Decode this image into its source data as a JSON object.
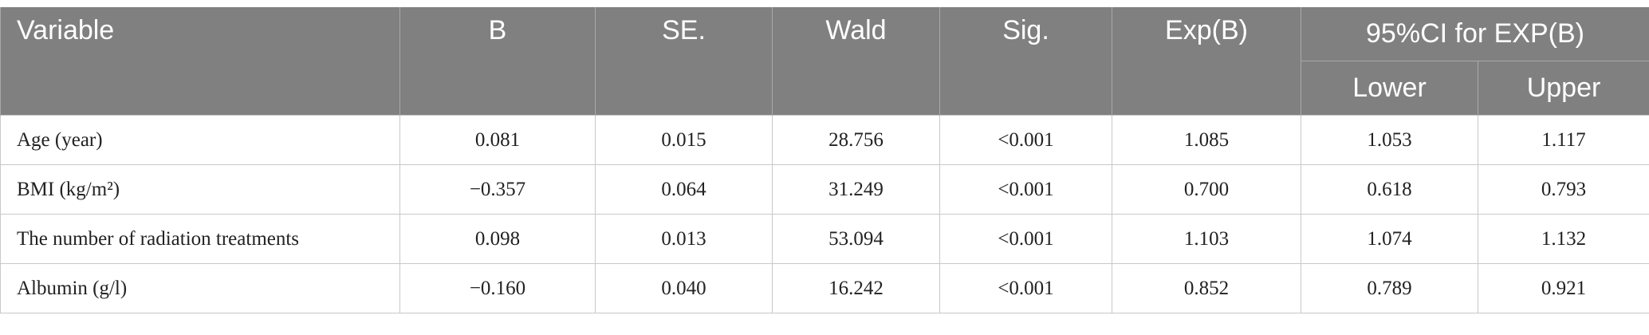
{
  "table": {
    "header": [
      "Variable",
      "B",
      "SE.",
      "Wald",
      "Sig.",
      "Exp(B)",
      "95%CI for EXP(B)"
    ],
    "subheader": [
      "Lower",
      "Upper"
    ],
    "rows": [
      [
        "Age (year)",
        "0.081",
        "0.015",
        "28.756",
        "<0.001",
        "1.085",
        "1.053",
        "1.117"
      ],
      [
        "BMI (kg/m²)",
        "−0.357",
        "0.064",
        "31.249",
        "<0.001",
        "0.700",
        "0.618",
        "0.793"
      ],
      [
        "The number of radiation treatments",
        "0.098",
        "0.013",
        "53.094",
        "<0.001",
        "1.103",
        "1.074",
        "1.132"
      ],
      [
        "Albumin (g/l)",
        "−0.160",
        "0.040",
        "16.242",
        "<0.001",
        "0.852",
        "0.789",
        "0.921"
      ]
    ]
  }
}
